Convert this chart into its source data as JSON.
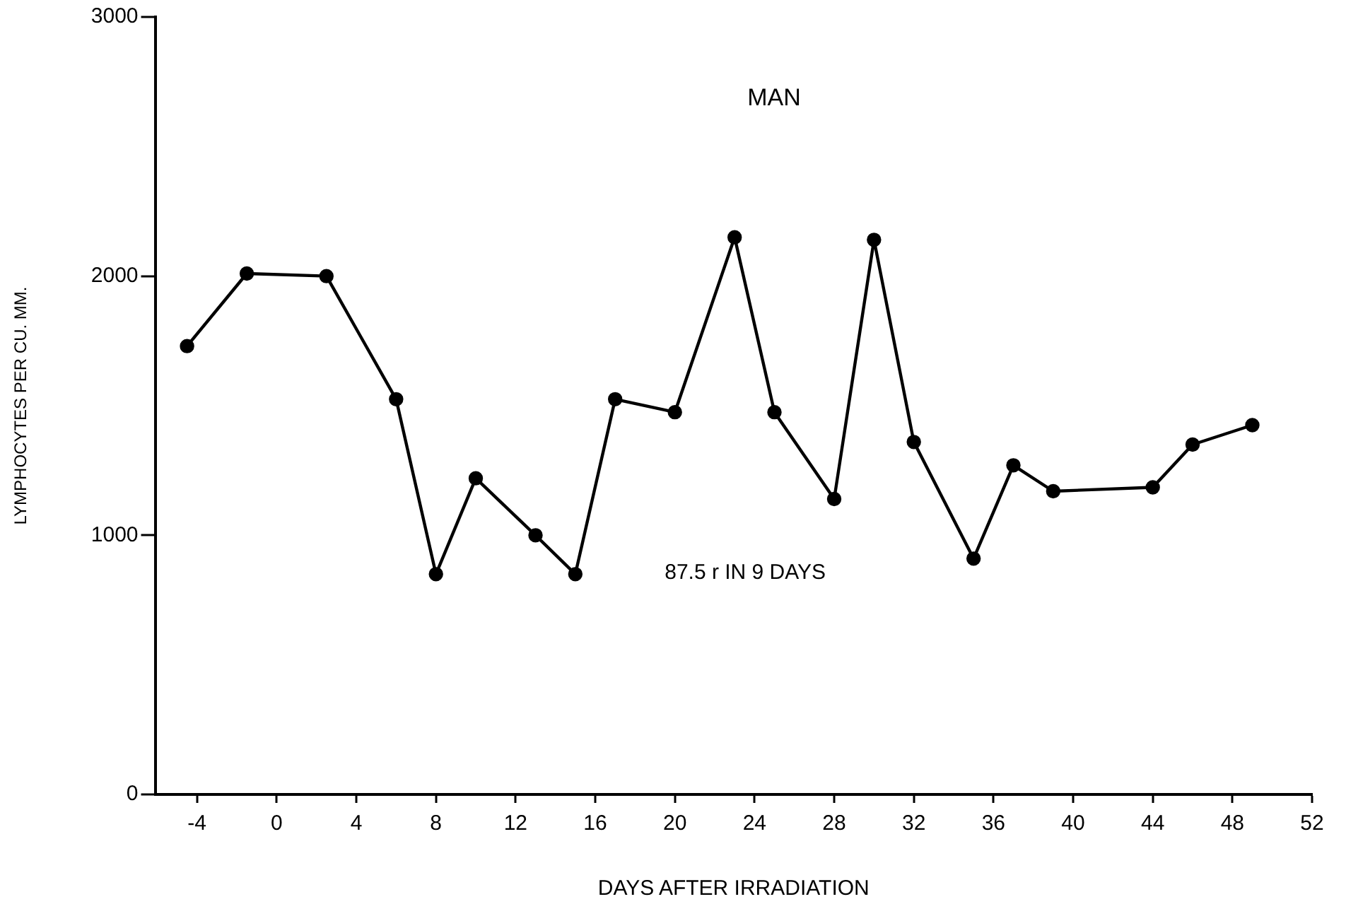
{
  "chart_data": {
    "type": "line",
    "title": "MAN",
    "xlabel": "DAYS AFTER IRRADIATION",
    "ylabel": "LYMPHOCYTES PER CU. MM.",
    "annotations": [
      "87.5 r IN 9 DAYS"
    ],
    "x": [
      -4.5,
      -1.5,
      2.5,
      6,
      8,
      10,
      13,
      15,
      17,
      20,
      23,
      25,
      28,
      30,
      32,
      35,
      37,
      39,
      44,
      46,
      49
    ],
    "series": [
      {
        "color": "#000000",
        "values": [
          1730,
          2010,
          2000,
          1525,
          850,
          1220,
          1000,
          850,
          1525,
          1475,
          2150,
          1475,
          1140,
          2140,
          1360,
          910,
          1270,
          1170,
          1185,
          1350,
          1425
        ]
      }
    ],
    "xlim": [
      -6.1,
      52
    ],
    "xticks": [
      -4,
      0,
      4,
      8,
      12,
      16,
      20,
      24,
      28,
      32,
      36,
      40,
      44,
      48,
      52
    ],
    "ylim": [
      0,
      3000
    ],
    "yticks": [
      0,
      1000,
      2000,
      3000
    ],
    "grid": false,
    "legend": false,
    "marker": "circle",
    "line_style": "solid"
  }
}
